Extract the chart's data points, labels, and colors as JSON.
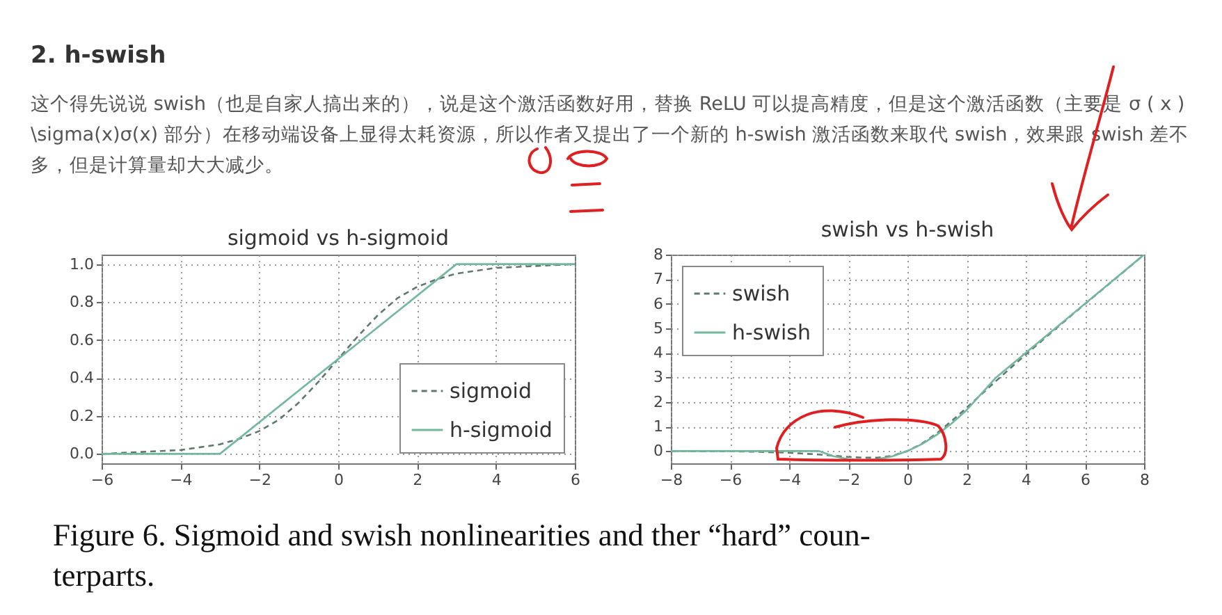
{
  "chart_data": [
    {
      "type": "line",
      "title": "sigmoid vs h-sigmoid",
      "annotations": [
        "2. h-swish",
        "这个得先说说 swish（也是自家人搞出来的），说是这个激活函数好用，替换 ReLU 可以提高精度，但是这个激活函数（主要是 σ ( x ) \\sigma(x)σ(x) 部分）在移动端设备上显得太耗资源，所以作者又提出了一个新的 h-swish 激活函数来取代 swish，效果跟 swish 差不多，但是计算量却大大减少。",
        "Figure 6. Sigmoid and swish nonlinearities and ther “hard” coun-\nterparts."
      ],
      "series": [
        {
          "name": "sigmoid",
          "color": "#5f7a6c",
          "line_style": "dashed",
          "x": [
            -6,
            -5,
            -4,
            -3,
            -2.5,
            -2,
            -1.5,
            -1,
            -0.5,
            0,
            0.5,
            1,
            1.5,
            2,
            2.5,
            3,
            4,
            5,
            6
          ],
          "values": [
            0.0,
            0.01,
            0.02,
            0.05,
            0.08,
            0.12,
            0.18,
            0.27,
            0.38,
            0.5,
            0.62,
            0.73,
            0.82,
            0.88,
            0.92,
            0.95,
            0.98,
            0.99,
            1.0
          ]
        },
        {
          "name": "h-sigmoid",
          "color": "#72b89a",
          "line_style": "solid",
          "x": [
            -6,
            -3,
            3,
            6
          ],
          "values": [
            0,
            0,
            1,
            1
          ]
        }
      ],
      "xlim": [
        -6,
        6
      ],
      "xticks": [
        {
          "value": -6,
          "label": "−6"
        },
        {
          "value": -4,
          "label": "−4"
        },
        {
          "value": -2,
          "label": "−2"
        },
        0,
        2,
        4,
        6
      ],
      "ylim": [
        -0.05,
        1.05
      ],
      "yticks": [
        {
          "value": 0,
          "label": "0.0"
        },
        0.2,
        0.4,
        0.6,
        0.8,
        {
          "value": 1,
          "label": "1.0"
        }
      ],
      "grid": true,
      "legend": "bottom right"
    },
    {
      "type": "line",
      "title": "swish vs h-swish",
      "series": [
        {
          "name": "swish",
          "color": "#5f7a6c",
          "line_style": "dashed",
          "x": [
            -8,
            -7,
            -6,
            -5,
            -4,
            -3,
            -2,
            -1.5,
            -1,
            -0.5,
            0,
            0.5,
            1,
            1.5,
            2,
            3,
            4,
            5,
            6,
            7,
            8
          ],
          "values": [
            0.0,
            -0.01,
            -0.01,
            -0.03,
            -0.07,
            -0.14,
            -0.24,
            -0.27,
            -0.27,
            -0.19,
            0,
            0.31,
            0.73,
            1.23,
            1.76,
            2.86,
            3.93,
            4.97,
            5.99,
            6.99,
            8.0
          ]
        },
        {
          "name": "h-swish",
          "color": "#72b89a",
          "line_style": "solid",
          "x": [
            -8,
            -3,
            -2.5,
            -2,
            -1.5,
            -1,
            -0.5,
            0,
            0.5,
            1,
            1.5,
            2,
            3,
            8
          ],
          "values": [
            0,
            0,
            -0.21,
            -0.33,
            -0.38,
            -0.33,
            -0.21,
            0,
            0.29,
            0.67,
            1.13,
            1.67,
            3,
            8
          ]
        }
      ],
      "xlim": [
        -8,
        8
      ],
      "xticks": [
        {
          "value": -8,
          "label": "−8"
        },
        {
          "value": -6,
          "label": "−6"
        },
        {
          "value": -4,
          "label": "−4"
        },
        {
          "value": -2,
          "label": "−2"
        },
        0,
        2,
        4,
        6,
        8
      ],
      "ylim": [
        -0.5,
        8
      ],
      "yticks": [
        0,
        1,
        2,
        3,
        4,
        5,
        6,
        7,
        8
      ],
      "grid": true,
      "legend": "top left"
    }
  ]
}
